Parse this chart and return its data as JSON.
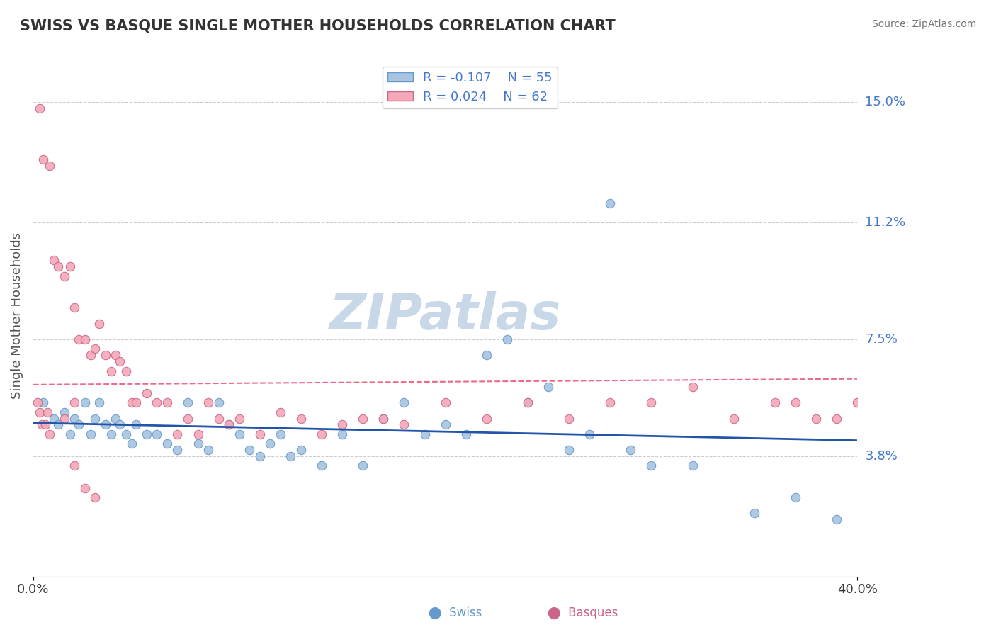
{
  "title": "SWISS VS BASQUE SINGLE MOTHER HOUSEHOLDS CORRELATION CHART",
  "source": "Source: ZipAtlas.com",
  "xlabel": "",
  "ylabel": "Single Mother Households",
  "xlim": [
    0.0,
    40.0
  ],
  "ylim": [
    0.0,
    16.5
  ],
  "yticks": [
    3.8,
    7.5,
    11.2,
    15.0
  ],
  "xticks": [
    0.0,
    40.0
  ],
  "xtick_labels": [
    "0.0%",
    "40.0%"
  ],
  "ytick_labels": [
    "3.8%",
    "7.5%",
    "11.2%",
    "15.0%"
  ],
  "swiss_color": "#a8c4e0",
  "swiss_edge_color": "#6699cc",
  "basque_color": "#f4a8b8",
  "basque_edge_color": "#cc6688",
  "swiss_line_color": "#2255aa",
  "basque_line_color": "#ee6688",
  "legend_swiss_label": "Swiss",
  "legend_basque_label": "Basques",
  "swiss_R": -0.107,
  "swiss_N": 55,
  "basque_R": 0.024,
  "basque_N": 62,
  "watermark": "ZIPatlas",
  "watermark_color": "#c8d8e8",
  "background_color": "#ffffff",
  "grid_color": "#cccccc",
  "swiss_x": [
    0.5,
    1.0,
    1.2,
    1.5,
    1.8,
    2.0,
    2.2,
    2.5,
    2.8,
    3.0,
    3.2,
    3.5,
    3.8,
    4.0,
    4.2,
    4.5,
    4.8,
    5.0,
    5.5,
    6.0,
    6.5,
    7.0,
    7.5,
    8.0,
    8.5,
    9.0,
    9.5,
    10.0,
    10.5,
    11.0,
    11.5,
    12.0,
    12.5,
    13.0,
    14.0,
    15.0,
    16.0,
    17.0,
    18.0,
    19.0,
    20.0,
    21.0,
    22.0,
    23.0,
    24.0,
    25.0,
    26.0,
    27.0,
    28.0,
    29.0,
    30.0,
    32.0,
    35.0,
    37.0,
    39.0
  ],
  "swiss_y": [
    5.5,
    5.0,
    4.8,
    5.2,
    4.5,
    5.0,
    4.8,
    5.5,
    4.5,
    5.0,
    5.5,
    4.8,
    4.5,
    5.0,
    4.8,
    4.5,
    4.2,
    4.8,
    4.5,
    4.5,
    4.2,
    4.0,
    5.5,
    4.2,
    4.0,
    5.5,
    4.8,
    4.5,
    4.0,
    3.8,
    4.2,
    4.5,
    3.8,
    4.0,
    3.5,
    4.5,
    3.5,
    5.0,
    5.5,
    4.5,
    4.8,
    4.5,
    7.0,
    7.5,
    5.5,
    6.0,
    4.0,
    4.5,
    11.8,
    4.0,
    3.5,
    3.5,
    2.0,
    2.5,
    1.8
  ],
  "basque_x": [
    0.3,
    0.5,
    0.8,
    1.0,
    1.2,
    1.5,
    1.8,
    2.0,
    2.2,
    2.5,
    2.8,
    3.0,
    3.2,
    3.5,
    3.8,
    4.0,
    4.2,
    4.5,
    4.8,
    5.0,
    5.5,
    6.0,
    6.5,
    7.0,
    7.5,
    8.0,
    8.5,
    9.0,
    9.5,
    10.0,
    11.0,
    12.0,
    13.0,
    14.0,
    15.0,
    16.0,
    17.0,
    18.0,
    20.0,
    22.0,
    24.0,
    26.0,
    28.0,
    30.0,
    32.0,
    34.0,
    36.0,
    37.0,
    38.0,
    39.0,
    40.0,
    2.0,
    2.5,
    3.0,
    0.2,
    0.3,
    0.4,
    0.6,
    0.7,
    0.8,
    1.5,
    2.0
  ],
  "basque_y": [
    14.8,
    13.2,
    13.0,
    10.0,
    9.8,
    9.5,
    9.8,
    8.5,
    7.5,
    7.5,
    7.0,
    7.2,
    8.0,
    7.0,
    6.5,
    7.0,
    6.8,
    6.5,
    5.5,
    5.5,
    5.8,
    5.5,
    5.5,
    4.5,
    5.0,
    4.5,
    5.5,
    5.0,
    4.8,
    5.0,
    4.5,
    5.2,
    5.0,
    4.5,
    4.8,
    5.0,
    5.0,
    4.8,
    5.5,
    5.0,
    5.5,
    5.0,
    5.5,
    5.5,
    6.0,
    5.0,
    5.5,
    5.5,
    5.0,
    5.0,
    5.5,
    3.5,
    2.8,
    2.5,
    5.5,
    5.2,
    4.8,
    4.8,
    5.2,
    4.5,
    5.0,
    5.5
  ]
}
